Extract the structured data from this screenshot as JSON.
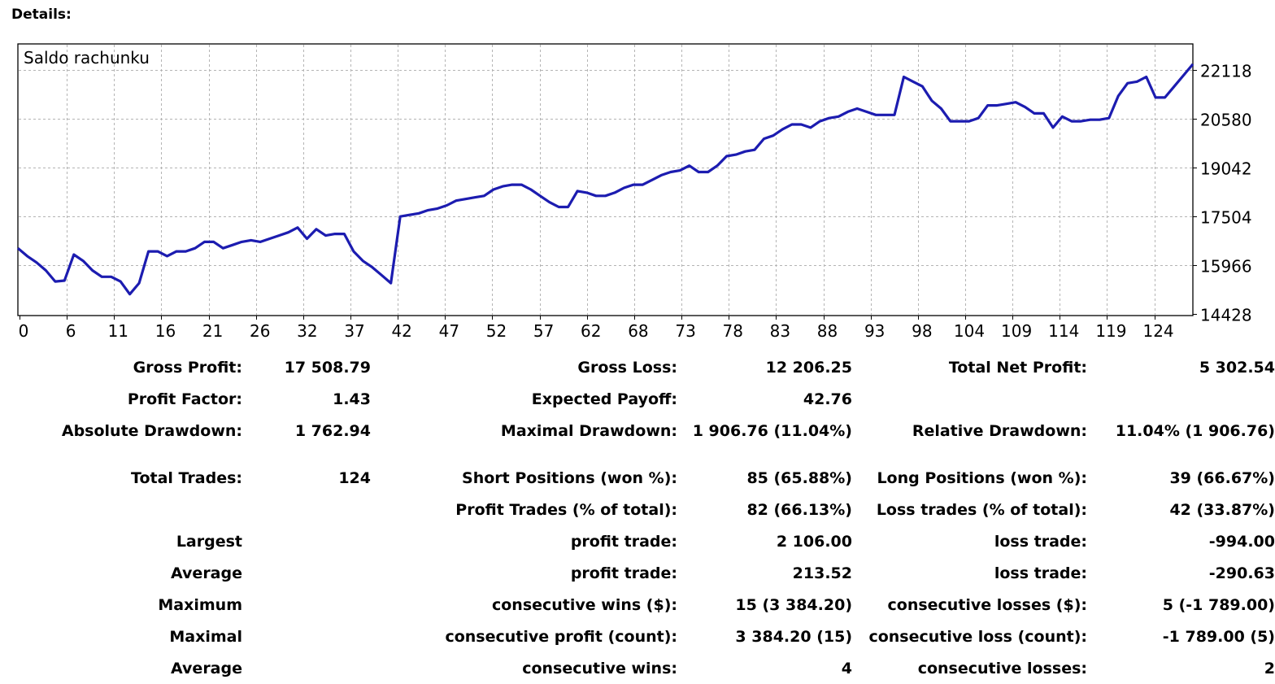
{
  "header": {
    "title": "Details:"
  },
  "chart_data": {
    "type": "line",
    "title": "Saldo rachunku",
    "x_ticks": [
      "0",
      "6",
      "11",
      "16",
      "21",
      "26",
      "32",
      "37",
      "42",
      "47",
      "52",
      "57",
      "62",
      "68",
      "73",
      "78",
      "83",
      "88",
      "93",
      "98",
      "104",
      "109",
      "114",
      "119",
      "124"
    ],
    "y_ticks": [
      "22118",
      "20580",
      "19042",
      "17504",
      "15966",
      "14428"
    ],
    "ylim": [
      14428,
      22118
    ],
    "xlim": [
      0,
      126
    ],
    "grid": true,
    "colors": {
      "line": "#1c1cb0",
      "grid": "#b4b4b4",
      "frame": "#000000"
    },
    "series": [
      {
        "x": [
          0,
          1,
          2,
          3,
          4,
          5,
          6,
          7,
          8,
          9,
          10,
          11,
          12,
          13,
          14,
          15,
          16,
          17,
          18,
          19,
          20,
          21,
          22,
          23,
          24,
          25,
          26,
          27,
          28,
          29,
          30,
          31,
          32,
          33,
          34,
          35,
          36,
          37,
          38,
          39,
          40,
          41,
          42,
          43,
          44,
          45,
          46,
          47,
          48,
          49,
          50,
          51,
          52,
          53,
          54,
          55,
          56,
          57,
          58,
          59,
          60,
          61,
          62,
          63,
          64,
          65,
          66,
          67,
          68,
          69,
          70,
          71,
          72,
          73,
          74,
          75,
          76,
          77,
          78,
          79,
          80,
          81,
          82,
          83,
          84,
          85,
          86,
          87,
          88,
          89,
          90,
          91,
          92,
          93,
          94,
          95,
          96,
          97,
          98,
          99,
          100,
          101,
          102,
          103,
          104,
          105,
          106,
          107,
          108,
          109,
          110,
          111,
          112,
          113,
          114,
          115,
          116,
          117,
          118,
          119,
          120,
          121,
          122,
          123,
          124,
          125,
          126
        ],
        "values": [
          16500,
          16250,
          16050,
          15800,
          15450,
          15480,
          16300,
          16100,
          15800,
          15600,
          15600,
          15450,
          15050,
          15400,
          16400,
          16400,
          16250,
          16400,
          16400,
          16500,
          16700,
          16700,
          16500,
          16600,
          16700,
          16750,
          16700,
          16800,
          16900,
          17000,
          17150,
          16800,
          17100,
          16900,
          16950,
          16950,
          16400,
          16100,
          15900,
          15650,
          15400,
          17500,
          17550,
          17600,
          17700,
          17750,
          17850,
          18000,
          18050,
          18100,
          18150,
          18350,
          18450,
          18500,
          18500,
          18350,
          18150,
          17950,
          17800,
          17800,
          18300,
          18250,
          18150,
          18150,
          18250,
          18400,
          18500,
          18500,
          18650,
          18800,
          18900,
          18950,
          19100,
          18900,
          18900,
          19100,
          19400,
          19450,
          19550,
          19600,
          19950,
          20050,
          20250,
          20400,
          20400,
          20300,
          20500,
          20600,
          20650,
          20800,
          20900,
          20800,
          20700,
          20700,
          20700,
          21900,
          21750,
          21600,
          21150,
          20900,
          20500,
          20500,
          20500,
          20600,
          21000,
          21000,
          21050,
          21100,
          20950,
          20750,
          20750,
          20300,
          20650,
          20500,
          20500,
          20550,
          20550,
          20600,
          21300,
          21700,
          21750,
          21900,
          21250,
          21250,
          21600,
          21950,
          22300
        ]
      }
    ]
  },
  "stats": {
    "rows": [
      [
        "Gross Profit:",
        "17 508.79",
        "Gross Loss:",
        "12 206.25",
        "Total Net Profit:",
        "5 302.54"
      ],
      [
        "Profit Factor:",
        "1.43",
        "Expected Payoff:",
        "42.76",
        "",
        ""
      ],
      [
        "Absolute Drawdown:",
        "1 762.94",
        "Maximal Drawdown:",
        "1 906.76 (11.04%)",
        "Relative Drawdown:",
        "11.04% (1 906.76)"
      ],
      [
        "Total Trades:",
        "124",
        "Short Positions (won %):",
        "85 (65.88%)",
        "Long Positions (won %):",
        "39 (66.67%)"
      ],
      [
        "",
        "",
        "Profit Trades (% of total):",
        "82 (66.13%)",
        "Loss trades (% of total):",
        "42 (33.87%)"
      ],
      [
        "Largest",
        "",
        "profit trade:",
        "2 106.00",
        "loss trade:",
        "-994.00"
      ],
      [
        "Average",
        "",
        "profit trade:",
        "213.52",
        "loss trade:",
        "-290.63"
      ],
      [
        "Maximum",
        "",
        "consecutive wins ($):",
        "15 (3 384.20)",
        "consecutive losses ($):",
        "5 (-1 789.00)"
      ],
      [
        "Maximal",
        "",
        "consecutive profit (count):",
        "3 384.20 (15)",
        "consecutive loss (count):",
        "-1 789.00 (5)"
      ],
      [
        "Average",
        "",
        "consecutive wins:",
        "4",
        "consecutive losses:",
        "2"
      ]
    ]
  }
}
